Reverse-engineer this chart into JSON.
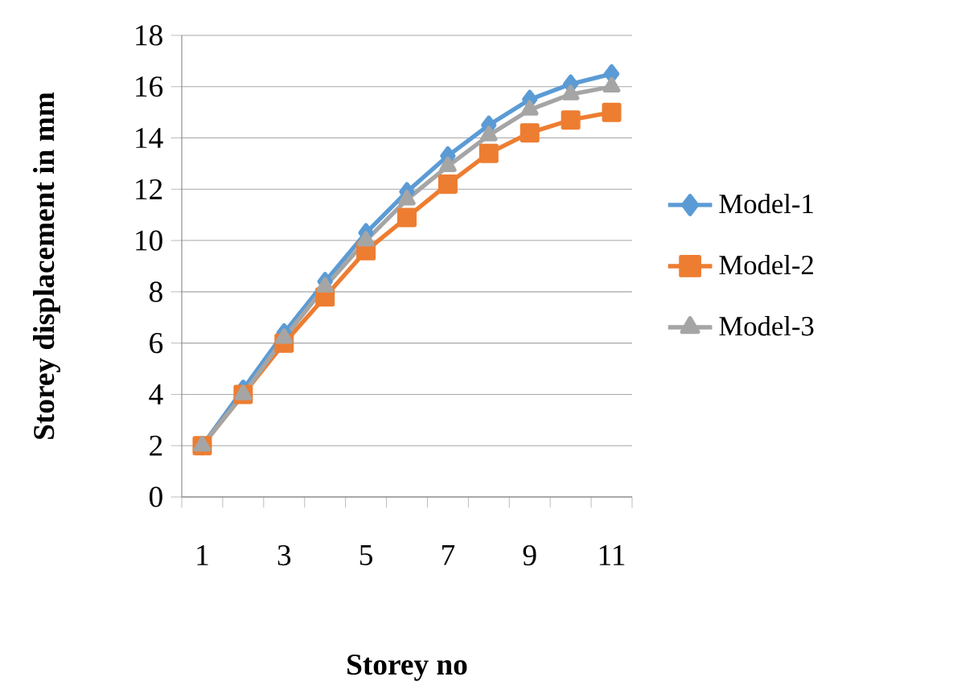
{
  "chart_data": {
    "type": "line",
    "xlabel": "Storey no",
    "ylabel": "Storey displacement in mm",
    "categories": [
      "1",
      null,
      "3",
      null,
      "5",
      null,
      "7",
      null,
      "9",
      null,
      "11"
    ],
    "series": [
      {
        "name": "Model-1",
        "color": "#5b9bd5",
        "marker": "diamond",
        "values": [
          2.0,
          4.2,
          6.4,
          8.4,
          10.3,
          11.9,
          13.3,
          14.5,
          15.5,
          16.1,
          16.5
        ]
      },
      {
        "name": "Model-2",
        "color": "#ed7d31",
        "marker": "square",
        "values": [
          2.0,
          4.0,
          6.0,
          7.8,
          9.6,
          10.9,
          12.2,
          13.4,
          14.2,
          14.7,
          15.0
        ]
      },
      {
        "name": "Model-3",
        "color": "#a5a5a5",
        "marker": "triangle",
        "values": [
          2.0,
          4.0,
          6.2,
          8.2,
          10.0,
          11.6,
          12.9,
          14.1,
          15.1,
          15.7,
          16.0
        ]
      }
    ],
    "ylim": [
      0,
      18
    ],
    "yticks": [
      0,
      2,
      4,
      6,
      8,
      10,
      12,
      14,
      16,
      18
    ],
    "grid": "y",
    "legend": "right"
  }
}
